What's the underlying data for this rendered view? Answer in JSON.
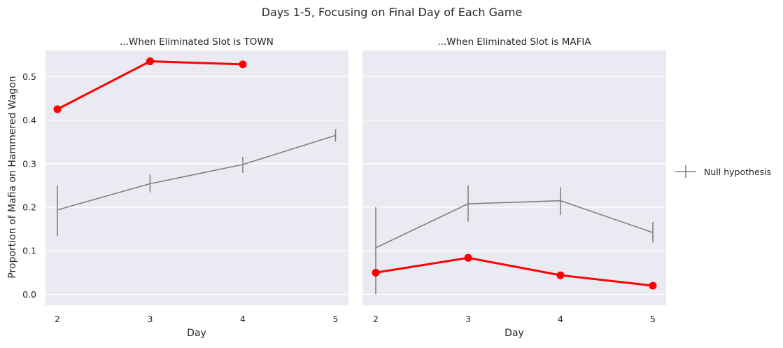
{
  "chart_data": {
    "type": "line",
    "title": "Days 1-5, Focusing on Final Day of Each Game",
    "ylabel": "Proportion of Mafia on Hammered Wagon",
    "legend": {
      "placement": "right",
      "entries": [
        "Null hypothesis"
      ]
    },
    "colors": {
      "observed": "#ff0000",
      "null": "#808080",
      "background": "#eaeaf2",
      "grid": "#ffffff"
    },
    "ylim": [
      -0.025,
      0.56
    ],
    "yticks": [
      "0.0",
      "0.1",
      "0.2",
      "0.3",
      "0.4",
      "0.5"
    ],
    "grid": true,
    "panels": [
      {
        "title": "...When Eliminated Slot is TOWN",
        "xlabel": "Day",
        "categories": [
          "2",
          "3",
          "4",
          "5"
        ],
        "series": [
          {
            "name": "Null hypothesis",
            "values": [
              0.194,
              0.254,
              0.298,
              0.365
            ],
            "err_low": [
              0.134,
              0.234,
              0.279,
              0.351
            ],
            "err_high": [
              0.25,
              0.275,
              0.316,
              0.379
            ]
          },
          {
            "values": [
              0.425,
              0.535,
              0.528,
              null
            ]
          }
        ]
      },
      {
        "title": "...When Eliminated Slot is MAFIA",
        "xlabel": "Day",
        "categories": [
          "2",
          "3",
          "4",
          "5"
        ],
        "series": [
          {
            "name": "Null hypothesis",
            "values": [
              0.107,
              0.208,
              0.215,
              0.142
            ],
            "err_low": [
              0.0,
              0.167,
              0.182,
              0.119
            ],
            "err_high": [
              0.2,
              0.25,
              0.246,
              0.166
            ]
          },
          {
            "values": [
              0.05,
              0.084,
              0.044,
              0.02
            ]
          }
        ]
      }
    ]
  }
}
